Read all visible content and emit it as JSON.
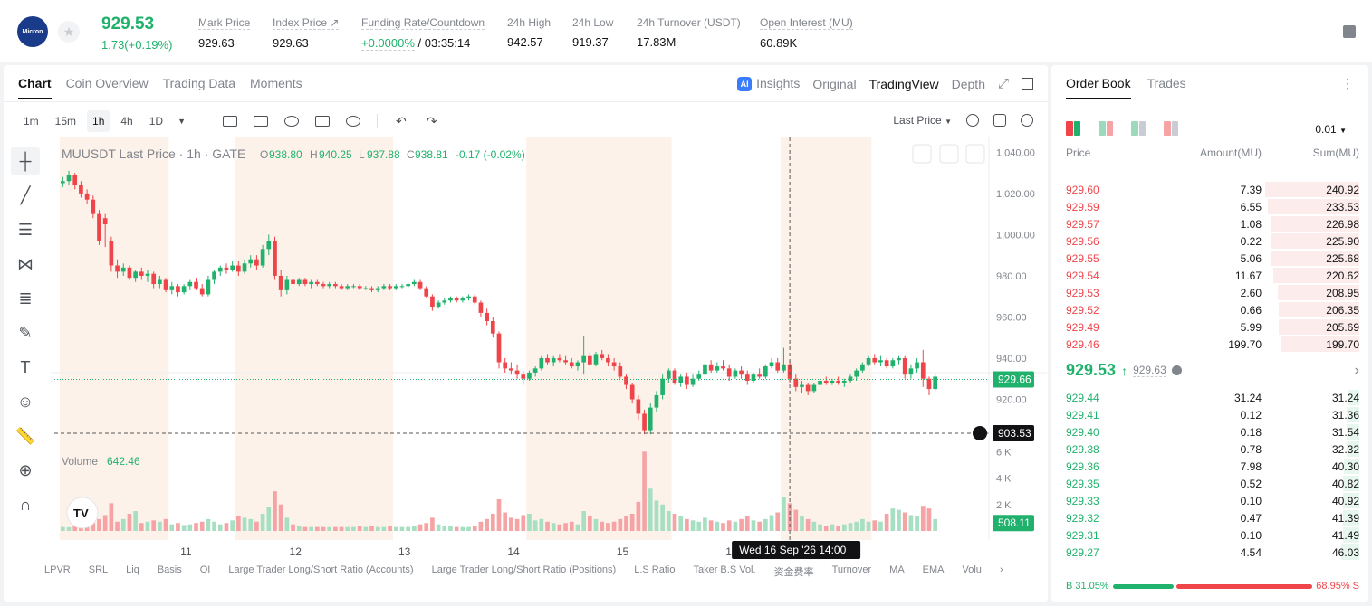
{
  "header": {
    "logo_text": "Micron",
    "last_price": "929.53",
    "change": "1.73(+0.19%)",
    "stats": [
      {
        "label": "Mark Price",
        "value": "929.63"
      },
      {
        "label": "Index Price ↗",
        "value": "929.63"
      },
      {
        "label": "Funding Rate/Countdown",
        "value": "+0.0000%",
        "value2": " / 03:35:14"
      },
      {
        "label": "24h High",
        "value": "942.57"
      },
      {
        "label": "24h Low",
        "value": "919.37"
      },
      {
        "label": "24h Turnover (USDT)",
        "value": "17.83M"
      },
      {
        "label": "Open Interest (MU)",
        "value": "60.89K"
      }
    ]
  },
  "chart_tabs": [
    "Chart",
    "Coin Overview",
    "Trading Data",
    "Moments"
  ],
  "view_tabs": [
    "Insights",
    "Original",
    "TradingView",
    "Depth"
  ],
  "ai_badge": "AI",
  "timeframes": [
    "1m",
    "15m",
    "1h",
    "4h",
    "1D"
  ],
  "active_timeframe": "1h",
  "price_type": "Last Price",
  "legend": {
    "symbol": "MUUSDT Last Price · 1h · GATE",
    "o_label": "O",
    "o": "938.80",
    "h_label": "H",
    "h": "940.25",
    "l_label": "L",
    "l": "937.88",
    "c_label": "C",
    "c": "938.81",
    "chg": "-0.17 (-0.02%)"
  },
  "volume_legend": {
    "label": "Volume",
    "value": "642.46"
  },
  "y_ticks": [
    "1,040.00",
    "1,020.00",
    "1,000.00",
    "980.00",
    "960.00",
    "940.00",
    "920.00"
  ],
  "vol_ticks": [
    "6 K",
    "4 K",
    "2 K"
  ],
  "price_label": "929.66",
  "cursor_price_label": "903.53",
  "vol_label": "508.11",
  "x_ticks": [
    "11",
    "12",
    "13",
    "14",
    "15",
    "16"
  ],
  "crosshair_time": "Wed 16 Sep '26   14:00",
  "indicators": [
    "LPVR",
    "SRL",
    "Liq",
    "Basis",
    "OI",
    "Large Trader Long/Short Ratio (Accounts)",
    "Large Trader Long/Short Ratio (Positions)",
    "L.S Ratio",
    "Taker B.S Vol.",
    "资金费率",
    "Turnover",
    "MA",
    "EMA",
    "Volu"
  ],
  "chart_data": {
    "type": "candlestick",
    "y_range": [
      900,
      1045
    ],
    "volume_range": [
      0,
      6500
    ],
    "candles": [
      [
        1025,
        1028,
        1023,
        1026,
        300
      ],
      [
        1026,
        1031,
        1024,
        1029,
        280
      ],
      [
        1029,
        1030,
        1022,
        1024,
        350
      ],
      [
        1024,
        1026,
        1018,
        1020,
        400
      ],
      [
        1020,
        1022,
        1015,
        1017,
        380
      ],
      [
        1017,
        1019,
        1008,
        1010,
        600
      ],
      [
        1010,
        1012,
        995,
        997,
        900
      ],
      [
        1008,
        1010,
        994,
        1005,
        1200
      ],
      [
        997,
        999,
        982,
        985,
        2100
      ],
      [
        985,
        988,
        979,
        982,
        700
      ],
      [
        982,
        986,
        980,
        984,
        900
      ],
      [
        984,
        985,
        978,
        979,
        1300
      ],
      [
        979,
        983,
        977,
        982,
        1500
      ],
      [
        982,
        984,
        978,
        980,
        600
      ],
      [
        980,
        983,
        977,
        981,
        700
      ],
      [
        981,
        982,
        974,
        976,
        800
      ],
      [
        976,
        980,
        974,
        978,
        700
      ],
      [
        978,
        979,
        972,
        973,
        900
      ],
      [
        973,
        977,
        971,
        975,
        500
      ],
      [
        975,
        976,
        970,
        972,
        600
      ],
      [
        972,
        976,
        971,
        975,
        450
      ],
      [
        975,
        978,
        973,
        977,
        500
      ],
      [
        977,
        979,
        973,
        974,
        600
      ],
      [
        974,
        976,
        970,
        971,
        700
      ],
      [
        971,
        980,
        970,
        978,
        900
      ],
      [
        978,
        983,
        976,
        982,
        700
      ],
      [
        982,
        985,
        980,
        984,
        500
      ],
      [
        984,
        986,
        981,
        983,
        600
      ],
      [
        983,
        987,
        982,
        985,
        800
      ],
      [
        985,
        987,
        980,
        982,
        1100
      ],
      [
        982,
        988,
        981,
        986,
        1000
      ],
      [
        986,
        990,
        984,
        988,
        900
      ],
      [
        988,
        990,
        983,
        985,
        700
      ],
      [
        985,
        995,
        984,
        993,
        1300
      ],
      [
        993,
        1000,
        990,
        997,
        1800
      ],
      [
        997,
        999,
        978,
        980,
        3000
      ],
      [
        980,
        983,
        970,
        973,
        2000
      ],
      [
        973,
        980,
        971,
        978,
        1000
      ],
      [
        978,
        980,
        974,
        976,
        500
      ],
      [
        976,
        979,
        975,
        978,
        400
      ],
      [
        978,
        979,
        975,
        976,
        300
      ],
      [
        976,
        978,
        974,
        977,
        300
      ],
      [
        977,
        978,
        975,
        976,
        300
      ],
      [
        976,
        977,
        974,
        975,
        300
      ],
      [
        975,
        977,
        974,
        976,
        300
      ],
      [
        976,
        977,
        974,
        975,
        300
      ],
      [
        975,
        976,
        973,
        974,
        300
      ],
      [
        974,
        976,
        973,
        975,
        300
      ],
      [
        975,
        976,
        974,
        975,
        300
      ],
      [
        975,
        976,
        973,
        974,
        350
      ],
      [
        974,
        975,
        973,
        974,
        300
      ],
      [
        974,
        975,
        972,
        973,
        350
      ],
      [
        973,
        975,
        972,
        974,
        300
      ],
      [
        974,
        976,
        973,
        975,
        300
      ],
      [
        975,
        976,
        973,
        974,
        350
      ],
      [
        974,
        976,
        973,
        975,
        300
      ],
      [
        975,
        976,
        974,
        975,
        300
      ],
      [
        975,
        977,
        974,
        976,
        300
      ],
      [
        976,
        978,
        975,
        977,
        400
      ],
      [
        977,
        978,
        973,
        974,
        500
      ],
      [
        974,
        975,
        969,
        970,
        600
      ],
      [
        970,
        971,
        963,
        965,
        1000
      ],
      [
        965,
        968,
        964,
        967,
        500
      ],
      [
        967,
        969,
        966,
        968,
        400
      ],
      [
        968,
        970,
        967,
        969,
        400
      ],
      [
        969,
        970,
        967,
        968,
        300
      ],
      [
        968,
        970,
        967,
        969,
        300
      ],
      [
        969,
        971,
        968,
        970,
        300
      ],
      [
        970,
        971,
        966,
        967,
        400
      ],
      [
        967,
        968,
        960,
        962,
        700
      ],
      [
        962,
        964,
        956,
        958,
        900
      ],
      [
        958,
        960,
        950,
        952,
        1300
      ],
      [
        952,
        953,
        935,
        938,
        2400
      ],
      [
        938,
        940,
        933,
        935,
        1400
      ],
      [
        935,
        938,
        932,
        934,
        1000
      ],
      [
        934,
        937,
        930,
        932,
        900
      ],
      [
        932,
        934,
        927,
        930,
        1200
      ],
      [
        930,
        934,
        929,
        933,
        1300
      ],
      [
        933,
        936,
        931,
        935,
        800
      ],
      [
        935,
        941,
        934,
        940,
        900
      ],
      [
        940,
        942,
        937,
        938,
        700
      ],
      [
        938,
        941,
        936,
        940,
        600
      ],
      [
        940,
        942,
        938,
        939,
        500
      ],
      [
        939,
        941,
        937,
        938,
        600
      ],
      [
        938,
        940,
        935,
        936,
        700
      ],
      [
        936,
        939,
        934,
        938,
        500
      ],
      [
        938,
        951,
        932,
        941,
        1500
      ],
      [
        941,
        943,
        936,
        937,
        1100
      ],
      [
        937,
        943,
        936,
        942,
        900
      ],
      [
        942,
        944,
        939,
        940,
        700
      ],
      [
        940,
        942,
        936,
        938,
        600
      ],
      [
        938,
        940,
        934,
        936,
        700
      ],
      [
        936,
        938,
        930,
        931,
        900
      ],
      [
        931,
        932,
        925,
        927,
        1100
      ],
      [
        927,
        928,
        918,
        920,
        1300
      ],
      [
        920,
        922,
        910,
        913,
        2200
      ],
      [
        913,
        915,
        903,
        905,
        6000
      ],
      [
        905,
        918,
        903,
        916,
        3200
      ],
      [
        916,
        924,
        914,
        922,
        2300
      ],
      [
        922,
        932,
        920,
        930,
        2000
      ],
      [
        930,
        935,
        928,
        934,
        1500
      ],
      [
        934,
        935,
        927,
        928,
        1300
      ],
      [
        928,
        932,
        926,
        931,
        1100
      ],
      [
        931,
        933,
        925,
        927,
        900
      ],
      [
        927,
        932,
        926,
        930,
        800
      ],
      [
        930,
        934,
        929,
        932,
        700
      ],
      [
        932,
        938,
        931,
        937,
        1000
      ],
      [
        937,
        939,
        933,
        934,
        800
      ],
      [
        934,
        938,
        933,
        936,
        700
      ],
      [
        936,
        939,
        934,
        935,
        600
      ],
      [
        935,
        937,
        929,
        931,
        800
      ],
      [
        931,
        935,
        930,
        934,
        700
      ],
      [
        934,
        936,
        930,
        932,
        900
      ],
      [
        932,
        934,
        927,
        929,
        1100
      ],
      [
        929,
        933,
        928,
        932,
        800
      ],
      [
        932,
        935,
        930,
        931,
        700
      ],
      [
        931,
        937,
        930,
        936,
        900
      ],
      [
        936,
        940,
        935,
        938,
        1200
      ],
      [
        938,
        940,
        933,
        934,
        1400
      ],
      [
        934,
        945,
        933,
        937,
        2600
      ],
      [
        937,
        939,
        928,
        930,
        2100
      ],
      [
        930,
        932,
        924,
        926,
        1600
      ],
      [
        926,
        929,
        923,
        927,
        1100
      ],
      [
        927,
        928,
        922,
        924,
        900
      ],
      [
        924,
        928,
        923,
        927,
        700
      ],
      [
        927,
        930,
        926,
        929,
        500
      ],
      [
        929,
        931,
        927,
        928,
        400
      ],
      [
        928,
        930,
        927,
        929,
        500
      ],
      [
        929,
        931,
        927,
        928,
        400
      ],
      [
        928,
        930,
        926,
        929,
        500
      ],
      [
        929,
        932,
        928,
        931,
        600
      ],
      [
        931,
        935,
        929,
        934,
        700
      ],
      [
        934,
        938,
        933,
        937,
        900
      ],
      [
        937,
        941,
        936,
        940,
        700
      ],
      [
        940,
        942,
        937,
        938,
        800
      ],
      [
        938,
        941,
        936,
        939,
        700
      ],
      [
        939,
        940,
        935,
        936,
        1300
      ],
      [
        936,
        940,
        935,
        939,
        1700
      ],
      [
        939,
        941,
        937,
        940,
        1600
      ],
      [
        940,
        941,
        930,
        932,
        1400
      ],
      [
        932,
        937,
        930,
        935,
        1200
      ],
      [
        935,
        940,
        933,
        938,
        1100
      ],
      [
        938,
        944,
        926,
        930,
        1900
      ],
      [
        930,
        931,
        922,
        925,
        1700
      ],
      [
        925,
        932,
        924,
        931,
        900
      ]
    ],
    "current_price": 929.66,
    "cursor_price": 903.53
  },
  "book": {
    "tabs": [
      "Order Book",
      "Trades"
    ],
    "precision": "0.01",
    "headers": [
      "Price",
      "Amount(MU)",
      "Sum(MU)"
    ],
    "asks": [
      {
        "price": "929.60",
        "amount": "7.39",
        "sum": "240.92",
        "depth": 240.92
      },
      {
        "price": "929.59",
        "amount": "6.55",
        "sum": "233.53",
        "depth": 233.53
      },
      {
        "price": "929.57",
        "amount": "1.08",
        "sum": "226.98",
        "depth": 226.98
      },
      {
        "price": "929.56",
        "amount": "0.22",
        "sum": "225.90",
        "depth": 225.9
      },
      {
        "price": "929.55",
        "amount": "5.06",
        "sum": "225.68",
        "depth": 225.68
      },
      {
        "price": "929.54",
        "amount": "11.67",
        "sum": "220.62",
        "depth": 220.62
      },
      {
        "price": "929.53",
        "amount": "2.60",
        "sum": "208.95",
        "depth": 208.95
      },
      {
        "price": "929.52",
        "amount": "0.66",
        "sum": "206.35",
        "depth": 206.35
      },
      {
        "price": "929.49",
        "amount": "5.99",
        "sum": "205.69",
        "depth": 205.69
      },
      {
        "price": "929.46",
        "amount": "199.70",
        "sum": "199.70",
        "depth": 199.7
      }
    ],
    "mid_price": "929.53",
    "mid_mark": "929.63",
    "bids": [
      {
        "price": "929.44",
        "amount": "31.24",
        "sum": "31.24",
        "depth": 31.24
      },
      {
        "price": "929.41",
        "amount": "0.12",
        "sum": "31.36",
        "depth": 31.36
      },
      {
        "price": "929.40",
        "amount": "0.18",
        "sum": "31.54",
        "depth": 31.54
      },
      {
        "price": "929.38",
        "amount": "0.78",
        "sum": "32.32",
        "depth": 32.32
      },
      {
        "price": "929.36",
        "amount": "7.98",
        "sum": "40.30",
        "depth": 40.3
      },
      {
        "price": "929.35",
        "amount": "0.52",
        "sum": "40.82",
        "depth": 40.82
      },
      {
        "price": "929.33",
        "amount": "0.10",
        "sum": "40.92",
        "depth": 40.92
      },
      {
        "price": "929.32",
        "amount": "0.47",
        "sum": "41.39",
        "depth": 41.39
      },
      {
        "price": "929.31",
        "amount": "0.10",
        "sum": "41.49",
        "depth": 41.49
      },
      {
        "price": "929.27",
        "amount": "4.54",
        "sum": "46.03",
        "depth": 46.03
      }
    ],
    "bid_ratio_label": "B 31.05%",
    "ask_ratio_label": "68.95% S",
    "bid_ratio": 31.05,
    "ask_ratio": 68.95
  },
  "colors": {
    "up": "#20b26c",
    "down": "#ef454a",
    "session": "#fdf2ea"
  }
}
